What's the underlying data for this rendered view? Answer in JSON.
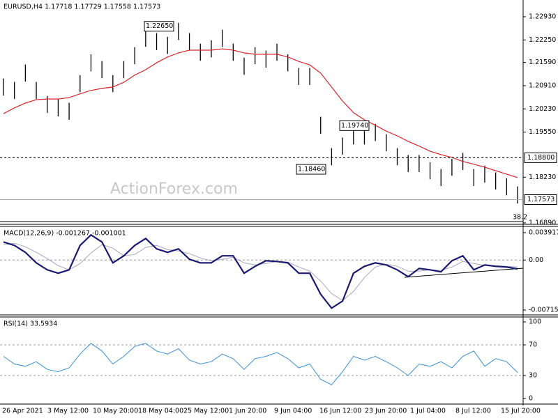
{
  "chart_data": [
    {
      "type": "ohlc",
      "title": "EURUSD,H4  1.17718 1.17729 1.17558 1.17573",
      "watermark": "ActionForex.com",
      "fib_label": "38.2",
      "ylim": [
        1.1693,
        1.2342
      ],
      "yticks": [
        {
          "value": 1.2293,
          "label": "1.22930"
        },
        {
          "value": 1.2225,
          "label": "1.22250"
        },
        {
          "value": 1.2159,
          "label": "1.21590"
        },
        {
          "value": 1.2091,
          "label": "1.20910"
        },
        {
          "value": 1.2023,
          "label": "1.20230"
        },
        {
          "value": 1.1955,
          "label": "1.19550"
        },
        {
          "value": 1.1823,
          "label": "1.18230"
        },
        {
          "value": 1.1689,
          "label": "1.16890"
        }
      ],
      "color": "#000000",
      "high": [
        1.2112,
        1.2102,
        1.2153,
        1.2102,
        1.2061,
        1.2051,
        1.2041,
        1.2122,
        1.2183,
        1.2163,
        1.2122,
        1.2163,
        1.2204,
        1.2255,
        1.2245,
        1.2234,
        1.2275,
        1.2245,
        1.2214,
        1.2224,
        1.2255,
        1.2214,
        1.2173,
        1.2204,
        1.2194,
        1.2214,
        1.2183,
        1.2143,
        1.2143,
        1.2,
        1.1908,
        1.1939,
        1.1969,
        1.1969,
        1.1979,
        1.1949,
        1.1908,
        1.1888,
        1.1888,
        1.1867,
        1.1847,
        1.1877,
        1.1894,
        1.1847,
        1.1857,
        1.1837,
        1.182,
        1.1796
      ],
      "low": [
        1.2062,
        1.2052,
        1.2103,
        1.2052,
        1.2011,
        1.2001,
        1.1991,
        1.2072,
        1.2133,
        1.2113,
        1.2072,
        1.2113,
        1.2154,
        1.2205,
        1.2195,
        1.2184,
        1.2225,
        1.2195,
        1.2164,
        1.2174,
        1.2205,
        1.2164,
        1.2123,
        1.2154,
        1.2144,
        1.2164,
        1.2133,
        1.2093,
        1.2093,
        1.195,
        1.1858,
        1.1889,
        1.1919,
        1.1919,
        1.1929,
        1.1899,
        1.1858,
        1.1838,
        1.1838,
        1.1817,
        1.1797,
        1.1827,
        1.1844,
        1.1797,
        1.1807,
        1.1787,
        1.177,
        1.1746
      ],
      "overlay": {
        "color": "#d9262c",
        "values": [
          1.2009,
          1.2026,
          1.204,
          1.205,
          1.2052,
          1.2052,
          1.2056,
          1.2067,
          1.2077,
          1.2083,
          1.2087,
          1.2101,
          1.2122,
          1.2138,
          1.2158,
          1.2175,
          1.2187,
          1.2195,
          1.2195,
          1.2195,
          1.2199,
          1.2195,
          1.2187,
          1.2183,
          1.2183,
          1.2183,
          1.2175,
          1.2162,
          1.2152,
          1.2128,
          1.2087,
          1.2046,
          1.2012,
          1.1991,
          1.1975,
          1.1958,
          1.1944,
          1.1928,
          1.1914,
          1.1899,
          1.1889,
          1.1881,
          1.1869,
          1.1861,
          1.1852,
          1.1842,
          1.1832,
          1.1822
        ]
      },
      "annotations": [
        {
          "value": 1.2265,
          "label": "1.22650"
        },
        {
          "value": 1.1974,
          "label": "1.19740"
        },
        {
          "value": 1.1846,
          "label": "1.18460"
        }
      ],
      "level": {
        "value": 1.188,
        "label": "1.18800"
      },
      "current_price": {
        "value": 1.17573,
        "label": "1.17573"
      },
      "x_labels": [
        "26 Apr 2021",
        "3 May 12:00",
        "10 May 20:00",
        "18 May 04:00",
        "25 May 12:00",
        "1 Jun 20:00",
        "9 Jun 04:00",
        "16 Jun 12:00",
        "23 Jun 20:00",
        "1 Jul 04:00",
        "8 Jul 12:00",
        "15 Jul 20:00"
      ]
    },
    {
      "type": "macd",
      "title": "MACD(12,26,9) -0.001267 -0.001001",
      "ylim": [
        -0.00785,
        0.00481
      ],
      "yticks": [
        0.003917,
        {
          "value": 0,
          "label": "0.00"
        },
        -0.007152
      ],
      "levels": [
        0
      ],
      "series": [
        {
          "color": "#1a1a70",
          "values": [
            0.00259,
            0.00209,
            0.0011,
            -0.0004,
            -0.0014,
            -0.00189,
            -0.0014,
            0.00209,
            0.00359,
            0.00259,
            -0.0004,
            0.0006,
            0.00209,
            0.00309,
            0.0016,
            0.0011,
            0.0016,
            0.0001,
            -0.0004,
            -0.0004,
            0.0006,
            0.0006,
            -0.00189,
            -0.0009,
            -0.0001,
            -0.0002,
            -0.0004,
            -0.00189,
            -0.00189,
            -0.00489,
            -0.00688,
            -0.00588,
            -0.00189,
            -0.0009,
            -0.0004,
            -0.0007,
            -0.0014,
            -0.00239,
            -0.0012,
            -0.0014,
            -0.00169,
            -0.0001,
            0.0006,
            -0.0014,
            -0.0007,
            -0.0009,
            -0.001,
            -0.00127
          ]
        },
        {
          "color": "#a9a3c4",
          "values": [
            0.0022,
            0.0024,
            0.0019,
            0.0011,
            0.0002,
            -0.0008,
            -0.0014,
            -0.0005,
            0.001,
            0.0022,
            0.0017,
            0.0006,
            0.0008,
            0.0018,
            0.0021,
            0.0015,
            0.0013,
            0.0009,
            0.0003,
            -0.0001,
            0.0001,
            0.0004,
            -0.0004,
            -0.0007,
            -0.0005,
            -0.0002,
            -0.0003,
            -0.001,
            -0.0016,
            -0.003,
            -0.0048,
            -0.0058,
            -0.0045,
            -0.0025,
            -0.001,
            -0.0006,
            -0.0009,
            -0.0016,
            -0.0016,
            -0.0014,
            -0.0015,
            -0.001,
            -0.0002,
            -0.0005,
            -0.0008,
            -0.0008,
            -0.0009,
            -0.001
          ]
        }
      ]
    },
    {
      "type": "line",
      "title": "RSI(14) 33.5934",
      "ylim": [
        -7.3,
        106.4
      ],
      "yticks": [
        100,
        70,
        30,
        0
      ],
      "levels": [
        70,
        30
      ],
      "series": [
        {
          "color": "#3a8fd6",
          "values": [
            55,
            45,
            42,
            48,
            38,
            35,
            40,
            58,
            72,
            62,
            45,
            55,
            68,
            72,
            62,
            58,
            65,
            50,
            45,
            48,
            58,
            52,
            38,
            52,
            55,
            60,
            52,
            40,
            45,
            25,
            18,
            35,
            55,
            50,
            55,
            48,
            40,
            30,
            45,
            42,
            48,
            40,
            55,
            62,
            42,
            52,
            48,
            34
          ]
        }
      ]
    }
  ]
}
